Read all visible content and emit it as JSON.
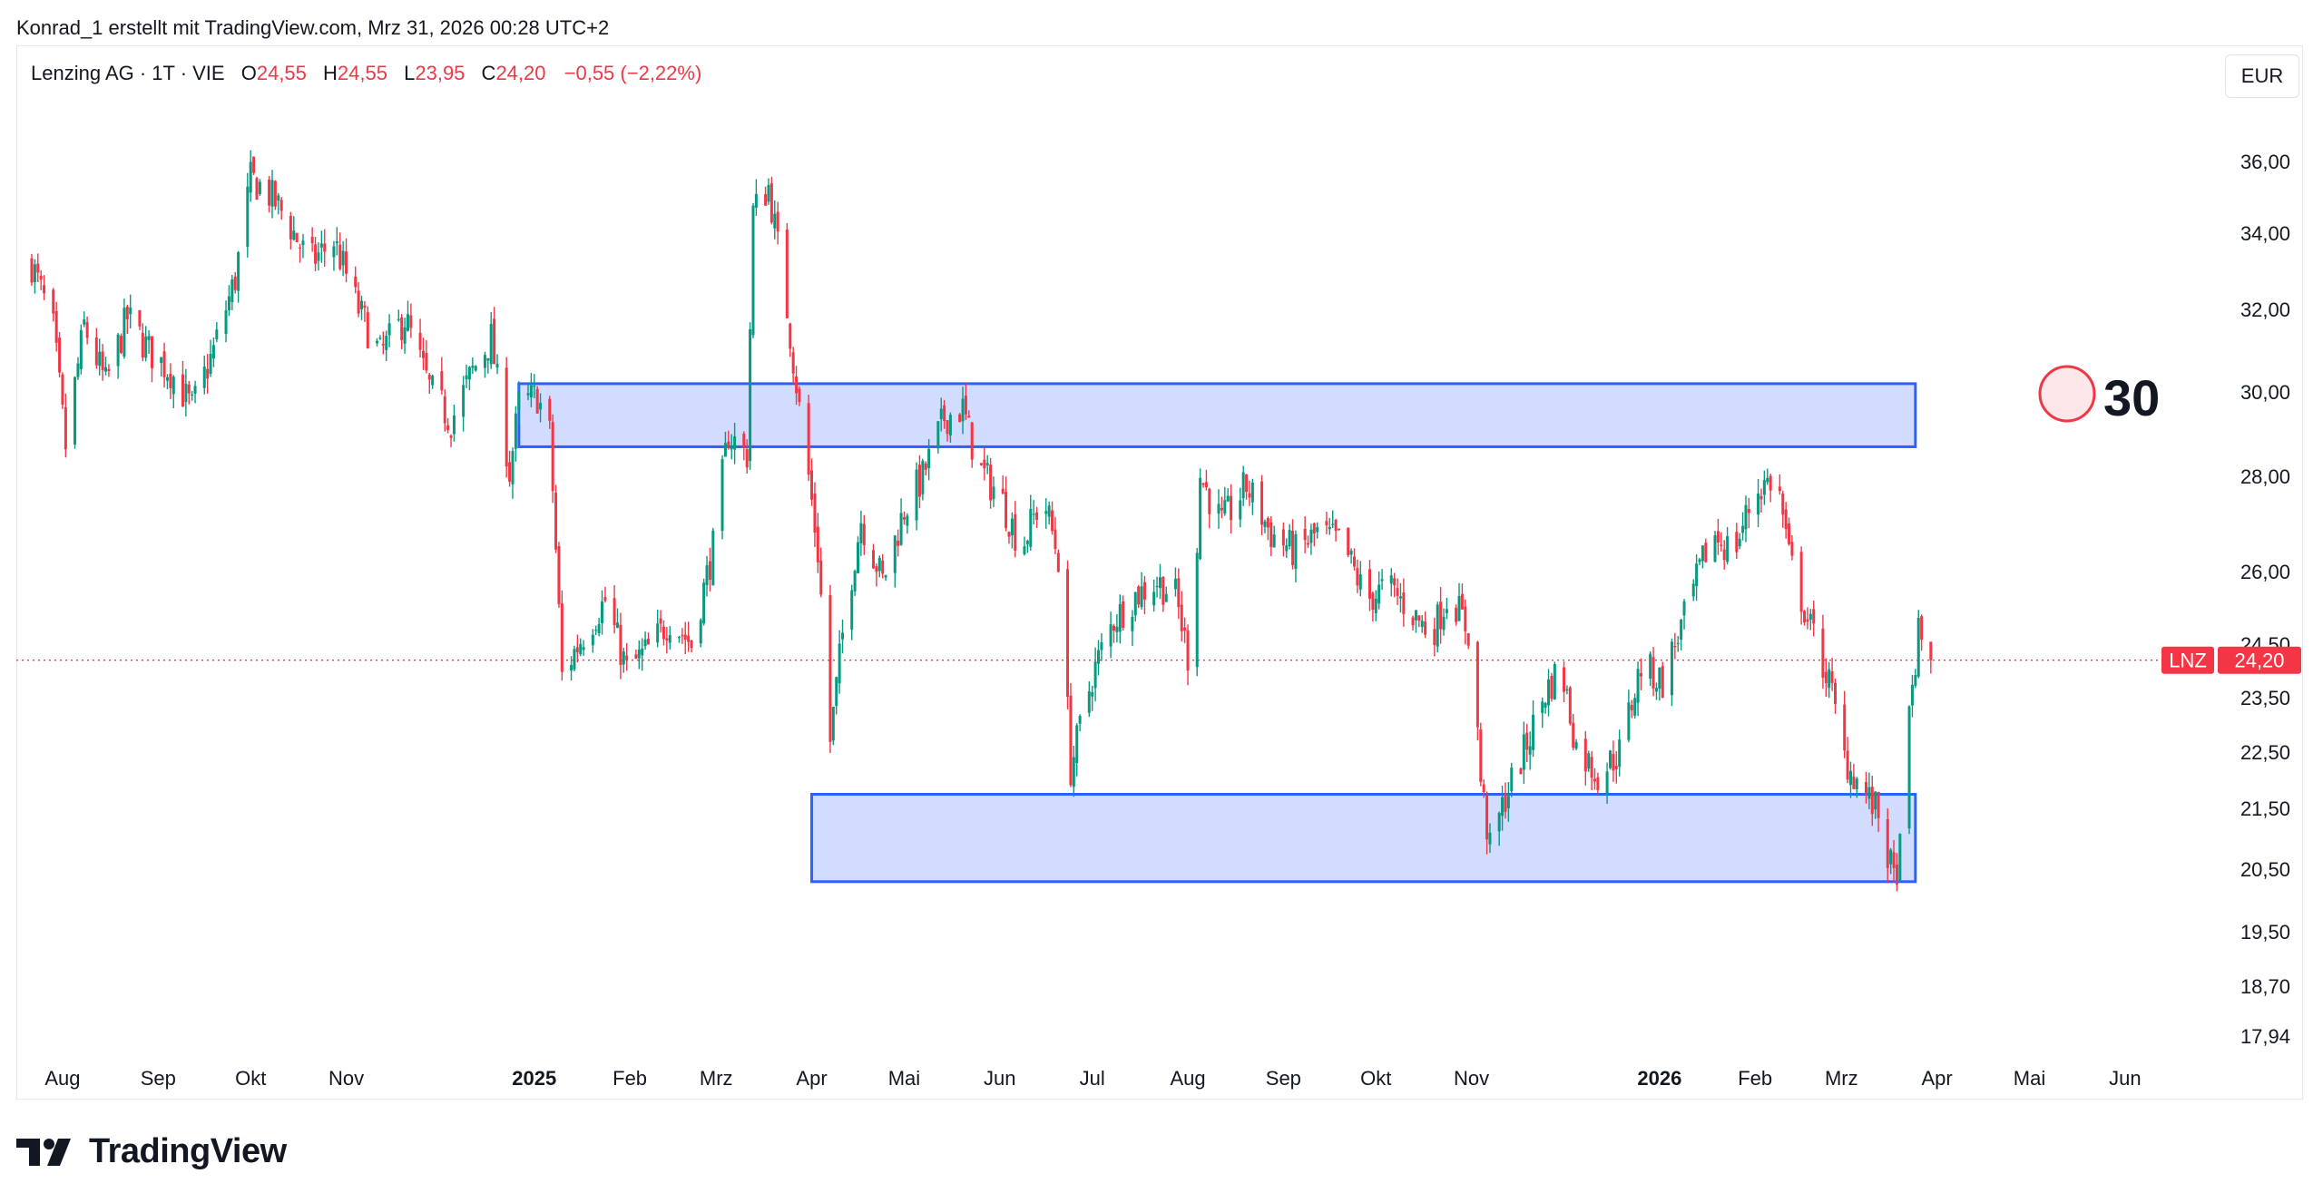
{
  "header": {
    "attribution": "Konrad_1 erstellt mit TradingView.com, Mrz 31, 2026 00:28 UTC+2"
  },
  "legend": {
    "symbol": "Lenzing AG · 1T · VIE",
    "o_label": "O",
    "o_value": "24,55",
    "h_label": "H",
    "h_value": "24,55",
    "l_label": "L",
    "l_value": "23,95",
    "c_label": "C",
    "c_value": "24,20",
    "change": "−0,55 (−2,22%)"
  },
  "currency": "EUR",
  "brand": "TradingView",
  "colors": {
    "up": "#089981",
    "down": "#f23645",
    "zone_fill": "#d1dcff",
    "zone_stroke": "#2962ff"
  },
  "chart_data": {
    "type": "candlestick",
    "price_tag": {
      "symbol": "LNZ",
      "value": "24,20",
      "price": 24.2
    },
    "y_ticks": [
      {
        "label": "36,00",
        "v": 36.0
      },
      {
        "label": "34,00",
        "v": 34.0
      },
      {
        "label": "32,00",
        "v": 32.0
      },
      {
        "label": "30,00",
        "v": 30.0
      },
      {
        "label": "28,00",
        "v": 28.0
      },
      {
        "label": "26,00",
        "v": 26.0
      },
      {
        "label": "24,50",
        "v": 24.5
      },
      {
        "label": "23,50",
        "v": 23.5
      },
      {
        "label": "22,50",
        "v": 22.5
      },
      {
        "label": "21,50",
        "v": 21.5
      },
      {
        "label": "20,50",
        "v": 20.5
      },
      {
        "label": "19,50",
        "v": 19.5
      },
      {
        "label": "18,70",
        "v": 18.7
      },
      {
        "label": "17,94",
        "v": 17.94
      }
    ],
    "x_ticks": [
      {
        "label": "Aug",
        "date": "2024-08-01"
      },
      {
        "label": "Sep",
        "date": "2024-09-01"
      },
      {
        "label": "Okt",
        "date": "2024-10-01"
      },
      {
        "label": "Nov",
        "date": "2024-11-01"
      },
      {
        "label": "2025",
        "date": "2025-01-01",
        "bold": true
      },
      {
        "label": "Feb",
        "date": "2025-02-01"
      },
      {
        "label": "Mrz",
        "date": "2025-03-01"
      },
      {
        "label": "Apr",
        "date": "2025-04-01"
      },
      {
        "label": "Mai",
        "date": "2025-05-01"
      },
      {
        "label": "Jun",
        "date": "2025-06-01"
      },
      {
        "label": "Jul",
        "date": "2025-07-01"
      },
      {
        "label": "Aug",
        "date": "2025-08-01"
      },
      {
        "label": "Sep",
        "date": "2025-09-01"
      },
      {
        "label": "Okt",
        "date": "2025-10-01"
      },
      {
        "label": "Nov",
        "date": "2025-11-01"
      },
      {
        "label": "2026",
        "date": "2026-01-01",
        "bold": true
      },
      {
        "label": "Feb",
        "date": "2026-02-01"
      },
      {
        "label": "Mrz",
        "date": "2026-03-01"
      },
      {
        "label": "Apr",
        "date": "2026-04-01"
      },
      {
        "label": "Mai",
        "date": "2026-05-01"
      },
      {
        "label": "Jun",
        "date": "2026-06-01"
      }
    ],
    "zones": [
      {
        "from": "2024-12-27",
        "to": "2026-03-25",
        "low": 28.7,
        "high": 30.2
      },
      {
        "from": "2025-04-01",
        "to": "2026-03-25",
        "low": 20.3,
        "high": 21.75
      }
    ],
    "annotation": {
      "text": "30"
    },
    "path": [
      [
        "2024-07-22",
        33.2
      ],
      [
        "2024-07-29",
        31.5
      ],
      [
        "2024-08-02",
        28.7
      ],
      [
        "2024-08-08",
        31.6
      ],
      [
        "2024-08-15",
        30.2
      ],
      [
        "2024-08-22",
        31.8
      ],
      [
        "2024-08-29",
        31.0
      ],
      [
        "2024-09-05",
        30.5
      ],
      [
        "2024-09-12",
        29.6
      ],
      [
        "2024-09-19",
        31.0
      ],
      [
        "2024-09-26",
        32.8
      ],
      [
        "2024-10-01",
        35.5
      ],
      [
        "2024-10-06",
        35.2
      ],
      [
        "2024-10-12",
        34.5
      ],
      [
        "2024-10-20",
        33.2
      ],
      [
        "2024-10-28",
        33.8
      ],
      [
        "2024-11-05",
        32.0
      ],
      [
        "2024-11-12",
        30.9
      ],
      [
        "2024-11-20",
        31.8
      ],
      [
        "2024-11-28",
        30.1
      ],
      [
        "2024-12-05",
        29.3
      ],
      [
        "2024-12-12",
        30.5
      ],
      [
        "2024-12-18",
        31.3
      ],
      [
        "2024-12-24",
        28.1
      ],
      [
        "2024-12-27",
        29.7
      ],
      [
        "2025-01-02",
        29.9
      ],
      [
        "2025-01-06",
        29.0
      ],
      [
        "2025-01-10",
        23.9
      ],
      [
        "2025-01-17",
        24.7
      ],
      [
        "2025-01-24",
        25.4
      ],
      [
        "2025-01-31",
        24.0
      ],
      [
        "2025-02-07",
        24.4
      ],
      [
        "2025-02-14",
        25.0
      ],
      [
        "2025-02-21",
        24.5
      ],
      [
        "2025-02-28",
        26.5
      ],
      [
        "2025-03-05",
        29.0
      ],
      [
        "2025-03-11",
        28.5
      ],
      [
        "2025-03-13",
        34.6
      ],
      [
        "2025-03-18",
        35.3
      ],
      [
        "2025-03-24",
        32.0
      ],
      [
        "2025-03-28",
        29.6
      ],
      [
        "2025-04-03",
        26.4
      ],
      [
        "2025-04-07",
        22.7
      ],
      [
        "2025-04-12",
        25.2
      ],
      [
        "2025-04-17",
        27.1
      ],
      [
        "2025-04-24",
        25.8
      ],
      [
        "2025-05-01",
        27.3
      ],
      [
        "2025-05-07",
        28.0
      ],
      [
        "2025-05-14",
        29.4
      ],
      [
        "2025-05-20",
        29.6
      ],
      [
        "2025-05-25",
        28.2
      ],
      [
        "2025-06-01",
        27.6
      ],
      [
        "2025-06-08",
        26.5
      ],
      [
        "2025-06-15",
        27.6
      ],
      [
        "2025-06-20",
        26.3
      ],
      [
        "2025-06-24",
        22.2
      ],
      [
        "2025-07-01",
        23.9
      ],
      [
        "2025-07-08",
        25.0
      ],
      [
        "2025-07-15",
        25.5
      ],
      [
        "2025-07-22",
        25.8
      ],
      [
        "2025-07-28",
        25.5
      ],
      [
        "2025-08-02",
        24.0
      ],
      [
        "2025-08-05",
        28.0
      ],
      [
        "2025-08-12",
        27.0
      ],
      [
        "2025-08-20",
        27.8
      ],
      [
        "2025-08-28",
        26.8
      ],
      [
        "2025-09-05",
        26.4
      ],
      [
        "2025-09-12",
        26.8
      ],
      [
        "2025-09-20",
        26.6
      ],
      [
        "2025-09-28",
        25.4
      ],
      [
        "2025-10-05",
        25.7
      ],
      [
        "2025-10-12",
        25.2
      ],
      [
        "2025-10-19",
        24.7
      ],
      [
        "2025-10-25",
        25.6
      ],
      [
        "2025-11-01",
        24.6
      ],
      [
        "2025-11-04",
        22.0
      ],
      [
        "2025-11-07",
        20.8
      ],
      [
        "2025-11-12",
        21.7
      ],
      [
        "2025-11-18",
        22.5
      ],
      [
        "2025-11-25",
        23.6
      ],
      [
        "2025-11-30",
        24.1
      ],
      [
        "2025-12-05",
        22.6
      ],
      [
        "2025-12-12",
        22.1
      ],
      [
        "2025-12-19",
        22.5
      ],
      [
        "2025-12-26",
        24.1
      ],
      [
        "2026-01-02",
        23.8
      ],
      [
        "2026-01-10",
        25.2
      ],
      [
        "2026-01-18",
        26.8
      ],
      [
        "2026-01-25",
        26.4
      ],
      [
        "2026-02-01",
        27.7
      ],
      [
        "2026-02-08",
        28.0
      ],
      [
        "2026-02-12",
        26.3
      ],
      [
        "2026-02-18",
        25.0
      ],
      [
        "2026-02-25",
        23.8
      ],
      [
        "2026-03-02",
        22.4
      ],
      [
        "2026-03-07",
        21.9
      ],
      [
        "2026-03-13",
        21.4
      ],
      [
        "2026-03-18",
        20.3
      ],
      [
        "2026-03-20",
        20.8
      ],
      [
        "2026-03-23",
        23.1
      ],
      [
        "2026-03-26",
        24.7
      ],
      [
        "2026-03-30",
        24.2
      ]
    ]
  }
}
